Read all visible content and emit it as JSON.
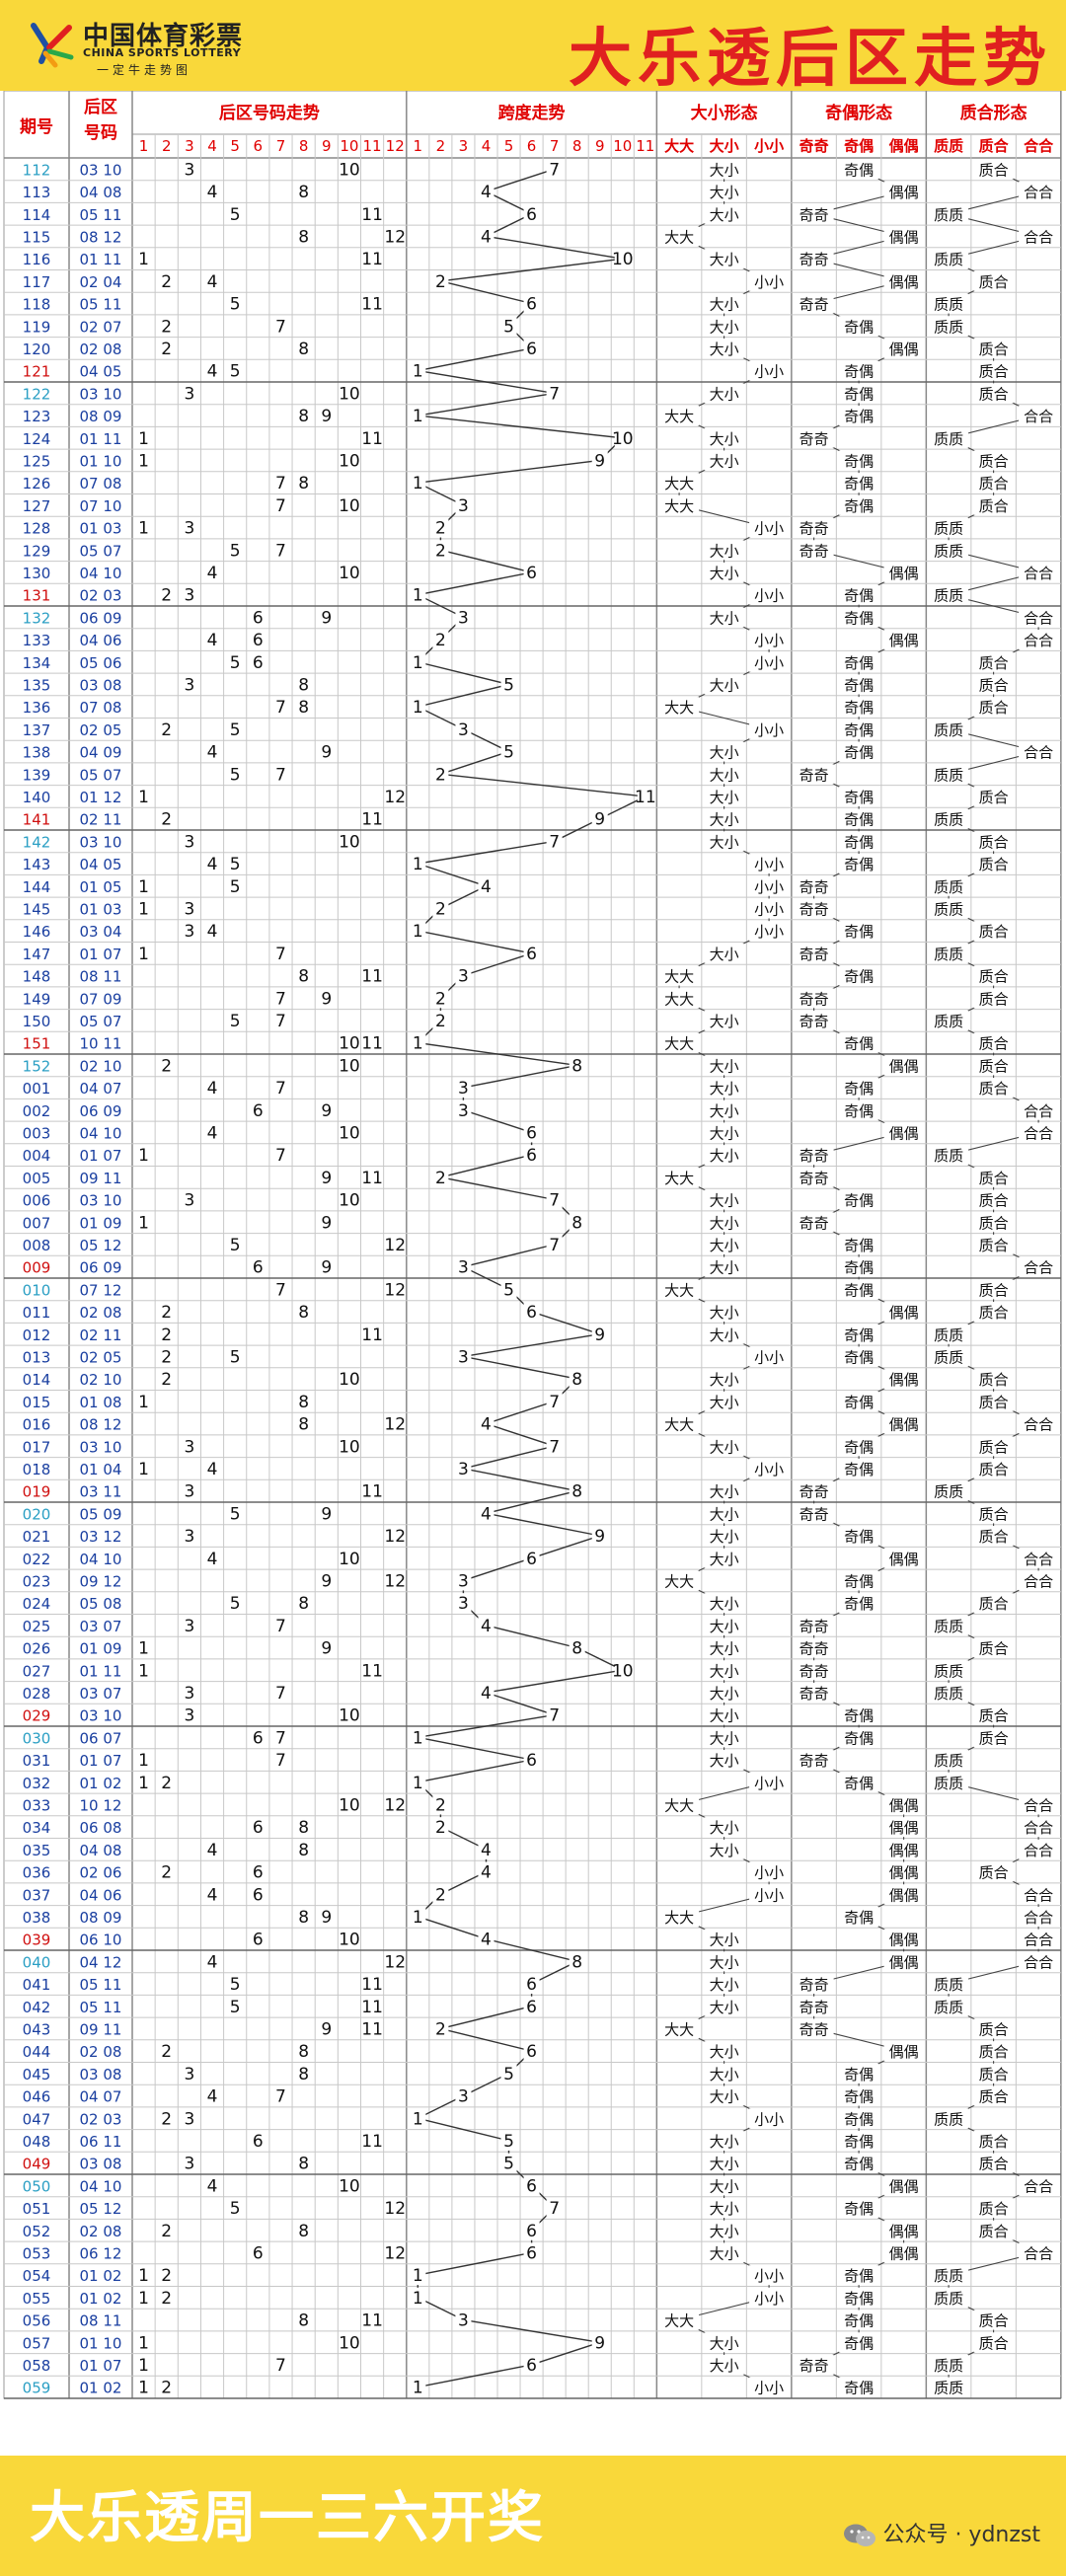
{
  "header": {
    "logo_cn": "中国体育彩票",
    "logo_en": "CHINA SPORTS LOTTERY",
    "logo_slogan": "一定牛走势图",
    "title": "大乐透后区走势"
  },
  "footer": {
    "title": "大乐透周一三六开奖",
    "wechat": "公众号 · ydnzst"
  },
  "colors": {
    "banner": "#f9d83a",
    "title_red": "#e02020",
    "issue_blue": "#1a3fa0",
    "issue_teal": "#2b9fc4",
    "issue_red": "#d01010",
    "header_red": "#e00000",
    "grid": "#c8c8c8",
    "line": "#333333"
  },
  "table_headers": {
    "issue": "期号",
    "back_zone": "后区号码",
    "number_trend": "后区号码走势",
    "span_trend": "跨度走势",
    "size": "大小形态",
    "parity": "奇偶形态",
    "prime": "质合形态",
    "size_sub": [
      "大大",
      "大小",
      "小小"
    ],
    "parity_sub": [
      "奇奇",
      "奇偶",
      "偶偶"
    ],
    "prime_sub": [
      "质质",
      "质合",
      "合合"
    ]
  },
  "chart_data": {
    "type": "table",
    "number_range": [
      1,
      12
    ],
    "span_range": [
      1,
      11
    ],
    "rows": [
      {
        "issue": "112",
        "nums": [
          3,
          10
        ]
      },
      {
        "issue": "113",
        "nums": [
          4,
          8
        ]
      },
      {
        "issue": "114",
        "nums": [
          5,
          11
        ]
      },
      {
        "issue": "115",
        "nums": [
          8,
          12
        ]
      },
      {
        "issue": "116",
        "nums": [
          1,
          11
        ]
      },
      {
        "issue": "117",
        "nums": [
          2,
          4
        ]
      },
      {
        "issue": "118",
        "nums": [
          5,
          11
        ]
      },
      {
        "issue": "119",
        "nums": [
          2,
          7
        ]
      },
      {
        "issue": "120",
        "nums": [
          2,
          8
        ]
      },
      {
        "issue": "121",
        "nums": [
          4,
          5
        ]
      },
      {
        "issue": "122",
        "nums": [
          3,
          10
        ]
      },
      {
        "issue": "123",
        "nums": [
          8,
          9
        ]
      },
      {
        "issue": "124",
        "nums": [
          1,
          11
        ]
      },
      {
        "issue": "125",
        "nums": [
          1,
          10
        ]
      },
      {
        "issue": "126",
        "nums": [
          7,
          8
        ]
      },
      {
        "issue": "127",
        "nums": [
          7,
          10
        ]
      },
      {
        "issue": "128",
        "nums": [
          1,
          3
        ]
      },
      {
        "issue": "129",
        "nums": [
          5,
          7
        ]
      },
      {
        "issue": "130",
        "nums": [
          4,
          10
        ]
      },
      {
        "issue": "131",
        "nums": [
          2,
          3
        ]
      },
      {
        "issue": "132",
        "nums": [
          6,
          9
        ]
      },
      {
        "issue": "133",
        "nums": [
          4,
          6
        ]
      },
      {
        "issue": "134",
        "nums": [
          5,
          6
        ]
      },
      {
        "issue": "135",
        "nums": [
          3,
          8
        ]
      },
      {
        "issue": "136",
        "nums": [
          7,
          8
        ]
      },
      {
        "issue": "137",
        "nums": [
          2,
          5
        ]
      },
      {
        "issue": "138",
        "nums": [
          4,
          9
        ]
      },
      {
        "issue": "139",
        "nums": [
          5,
          7
        ]
      },
      {
        "issue": "140",
        "nums": [
          1,
          12
        ]
      },
      {
        "issue": "141",
        "nums": [
          2,
          11
        ]
      },
      {
        "issue": "142",
        "nums": [
          3,
          10
        ]
      },
      {
        "issue": "143",
        "nums": [
          4,
          5
        ]
      },
      {
        "issue": "144",
        "nums": [
          1,
          5
        ]
      },
      {
        "issue": "145",
        "nums": [
          1,
          3
        ]
      },
      {
        "issue": "146",
        "nums": [
          3,
          4
        ]
      },
      {
        "issue": "147",
        "nums": [
          1,
          7
        ]
      },
      {
        "issue": "148",
        "nums": [
          8,
          11
        ]
      },
      {
        "issue": "149",
        "nums": [
          7,
          9
        ]
      },
      {
        "issue": "150",
        "nums": [
          5,
          7
        ]
      },
      {
        "issue": "151",
        "nums": [
          10,
          11
        ]
      },
      {
        "issue": "152",
        "nums": [
          2,
          10
        ]
      },
      {
        "issue": "001",
        "nums": [
          4,
          7
        ]
      },
      {
        "issue": "002",
        "nums": [
          6,
          9
        ]
      },
      {
        "issue": "003",
        "nums": [
          4,
          10
        ]
      },
      {
        "issue": "004",
        "nums": [
          1,
          7
        ]
      },
      {
        "issue": "005",
        "nums": [
          9,
          11
        ]
      },
      {
        "issue": "006",
        "nums": [
          3,
          10
        ]
      },
      {
        "issue": "007",
        "nums": [
          1,
          9
        ]
      },
      {
        "issue": "008",
        "nums": [
          5,
          12
        ]
      },
      {
        "issue": "009",
        "nums": [
          6,
          9
        ]
      },
      {
        "issue": "010",
        "nums": [
          7,
          12
        ]
      },
      {
        "issue": "011",
        "nums": [
          2,
          8
        ]
      },
      {
        "issue": "012",
        "nums": [
          2,
          11
        ]
      },
      {
        "issue": "013",
        "nums": [
          2,
          5
        ]
      },
      {
        "issue": "014",
        "nums": [
          2,
          10
        ]
      },
      {
        "issue": "015",
        "nums": [
          1,
          8
        ]
      },
      {
        "issue": "016",
        "nums": [
          8,
          12
        ]
      },
      {
        "issue": "017",
        "nums": [
          3,
          10
        ]
      },
      {
        "issue": "018",
        "nums": [
          1,
          4
        ]
      },
      {
        "issue": "019",
        "nums": [
          3,
          11
        ]
      },
      {
        "issue": "020",
        "nums": [
          5,
          9
        ]
      },
      {
        "issue": "021",
        "nums": [
          3,
          12
        ]
      },
      {
        "issue": "022",
        "nums": [
          4,
          10
        ]
      },
      {
        "issue": "023",
        "nums": [
          9,
          12
        ]
      },
      {
        "issue": "024",
        "nums": [
          5,
          8
        ]
      },
      {
        "issue": "025",
        "nums": [
          3,
          7
        ]
      },
      {
        "issue": "026",
        "nums": [
          1,
          9
        ]
      },
      {
        "issue": "027",
        "nums": [
          1,
          11
        ]
      },
      {
        "issue": "028",
        "nums": [
          3,
          7
        ]
      },
      {
        "issue": "029",
        "nums": [
          3,
          10
        ]
      },
      {
        "issue": "030",
        "nums": [
          6,
          7
        ]
      },
      {
        "issue": "031",
        "nums": [
          1,
          7
        ]
      },
      {
        "issue": "032",
        "nums": [
          1,
          2
        ]
      },
      {
        "issue": "033",
        "nums": [
          10,
          12
        ]
      },
      {
        "issue": "034",
        "nums": [
          6,
          8
        ]
      },
      {
        "issue": "035",
        "nums": [
          4,
          8
        ]
      },
      {
        "issue": "036",
        "nums": [
          2,
          6
        ]
      },
      {
        "issue": "037",
        "nums": [
          4,
          6
        ]
      },
      {
        "issue": "038",
        "nums": [
          8,
          9
        ]
      },
      {
        "issue": "039",
        "nums": [
          6,
          10
        ]
      },
      {
        "issue": "040",
        "nums": [
          4,
          12
        ]
      },
      {
        "issue": "041",
        "nums": [
          5,
          11
        ]
      },
      {
        "issue": "042",
        "nums": [
          5,
          11
        ]
      },
      {
        "issue": "043",
        "nums": [
          9,
          11
        ]
      },
      {
        "issue": "044",
        "nums": [
          2,
          8
        ]
      },
      {
        "issue": "045",
        "nums": [
          3,
          8
        ]
      },
      {
        "issue": "046",
        "nums": [
          4,
          7
        ]
      },
      {
        "issue": "047",
        "nums": [
          2,
          3
        ]
      },
      {
        "issue": "048",
        "nums": [
          6,
          11
        ]
      },
      {
        "issue": "049",
        "nums": [
          3,
          8
        ]
      },
      {
        "issue": "050",
        "nums": [
          4,
          10
        ]
      },
      {
        "issue": "051",
        "nums": [
          5,
          12
        ]
      },
      {
        "issue": "052",
        "nums": [
          2,
          8
        ]
      },
      {
        "issue": "053",
        "nums": [
          6,
          12
        ]
      },
      {
        "issue": "054",
        "nums": [
          1,
          2
        ]
      },
      {
        "issue": "055",
        "nums": [
          1,
          2
        ]
      },
      {
        "issue": "056",
        "nums": [
          8,
          11
        ]
      },
      {
        "issue": "057",
        "nums": [
          1,
          10
        ]
      },
      {
        "issue": "058",
        "nums": [
          1,
          7
        ]
      },
      {
        "issue": "059",
        "nums": [
          1,
          2
        ]
      }
    ]
  }
}
